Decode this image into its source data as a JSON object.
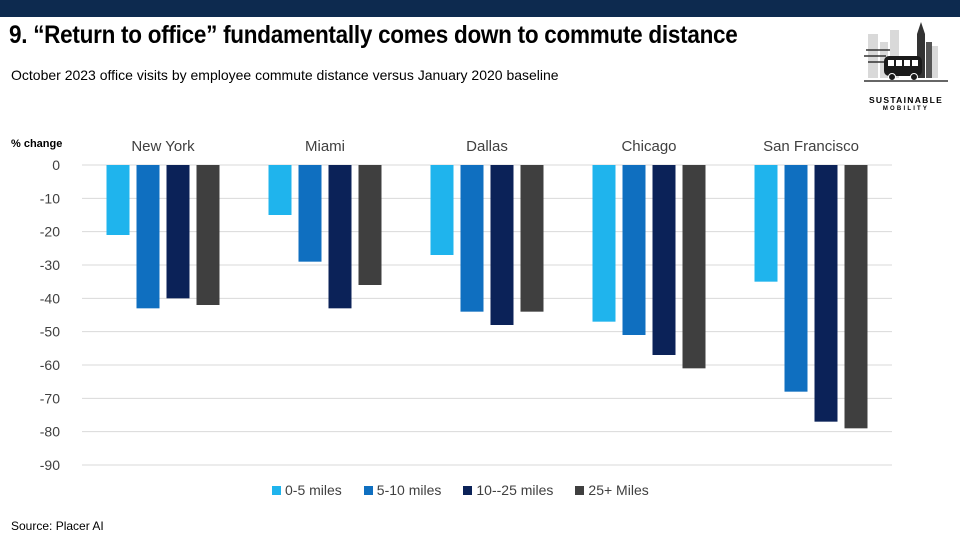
{
  "header": {
    "title": "9. “Return to office” fundamentally comes down to commute distance",
    "subtitle": "October 2023 office visits by employee commute distance versus January 2020 baseline"
  },
  "logo": {
    "word1": "SUSTAINABLE",
    "word2": "MOBILITY",
    "icon": "city-bus-skyline-logo"
  },
  "footer": {
    "source": "Source: Placer AI"
  },
  "colors": {
    "bar_bg": "#0d2a4f",
    "series": [
      "#1fb4ed",
      "#0f6fc0",
      "#0b2258",
      "#3f3f3f"
    ]
  },
  "chart_data": {
    "type": "bar",
    "ylabel": "% change",
    "ylim": [
      -90,
      0
    ],
    "yticks": [
      0,
      -10,
      -20,
      -30,
      -40,
      -50,
      -60,
      -70,
      -80,
      -90
    ],
    "grid": true,
    "legend_position": "bottom",
    "categories": [
      "New York",
      "Miami",
      "Dallas",
      "Chicago",
      "San Francisco"
    ],
    "series": [
      {
        "name": "0-5 miles",
        "values": [
          -21,
          -15,
          -27,
          -47,
          -35
        ]
      },
      {
        "name": "5-10 miles",
        "values": [
          -43,
          -29,
          -44,
          -51,
          -68
        ]
      },
      {
        "name": "10--25 miles",
        "values": [
          -40,
          -43,
          -48,
          -57,
          -77
        ]
      },
      {
        "name": "25+ Miles",
        "values": [
          -42,
          -36,
          -44,
          -61,
          -79
        ]
      }
    ]
  }
}
